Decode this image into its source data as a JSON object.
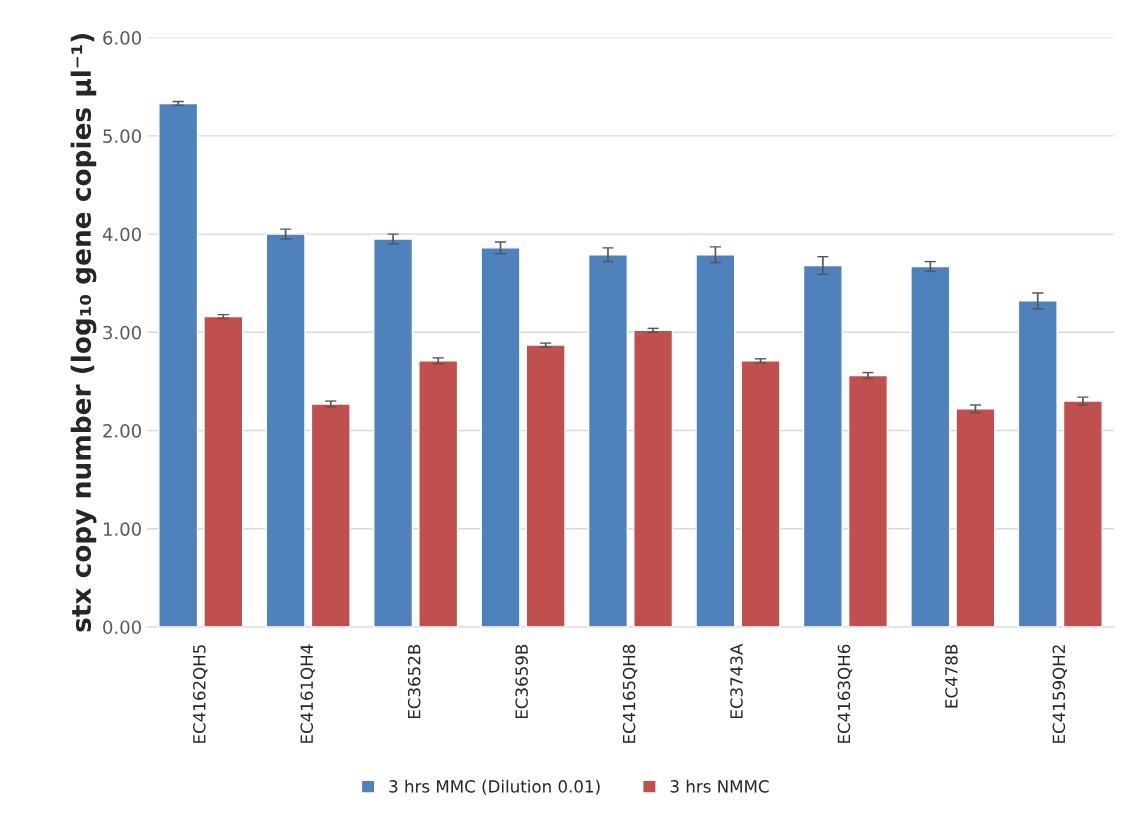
{
  "chart_data": {
    "type": "bar",
    "ylabel": "stx copy number (log₁₀ gene copies µl⁻¹)",
    "categories": [
      "EC4162QH5",
      "EC4161QH4",
      "EC3652B",
      "EC3659B",
      "EC4165QH8",
      "EC3743A",
      "EC4163QH6",
      "EC478B",
      "EC4159QH2"
    ],
    "series": [
      {
        "name": "3 hrs MMC (Dilution 0.01)",
        "color": "#4f81bd",
        "values": [
          5.33,
          4.0,
          3.95,
          3.86,
          3.79,
          3.79,
          3.68,
          3.67,
          3.32
        ],
        "errors": [
          0.02,
          0.05,
          0.05,
          0.06,
          0.07,
          0.08,
          0.09,
          0.05,
          0.08
        ]
      },
      {
        "name": "3 hrs NMMC",
        "color": "#c0504d",
        "values": [
          3.16,
          2.27,
          2.71,
          2.87,
          3.02,
          2.71,
          2.56,
          2.22,
          2.3
        ],
        "errors": [
          0.02,
          0.03,
          0.03,
          0.02,
          0.02,
          0.02,
          0.03,
          0.04,
          0.04
        ]
      }
    ],
    "ylim": [
      0,
      6
    ],
    "yticks": [
      {
        "value": 0,
        "label": "0.00"
      },
      {
        "value": 1,
        "label": "1.00"
      },
      {
        "value": 2,
        "label": "2.00"
      },
      {
        "value": 3,
        "label": "3.00"
      },
      {
        "value": 4,
        "label": "4.00"
      },
      {
        "value": 5,
        "label": "5.00"
      },
      {
        "value": 6,
        "label": "6.00"
      }
    ],
    "grid": "y",
    "legend": "bottom"
  }
}
